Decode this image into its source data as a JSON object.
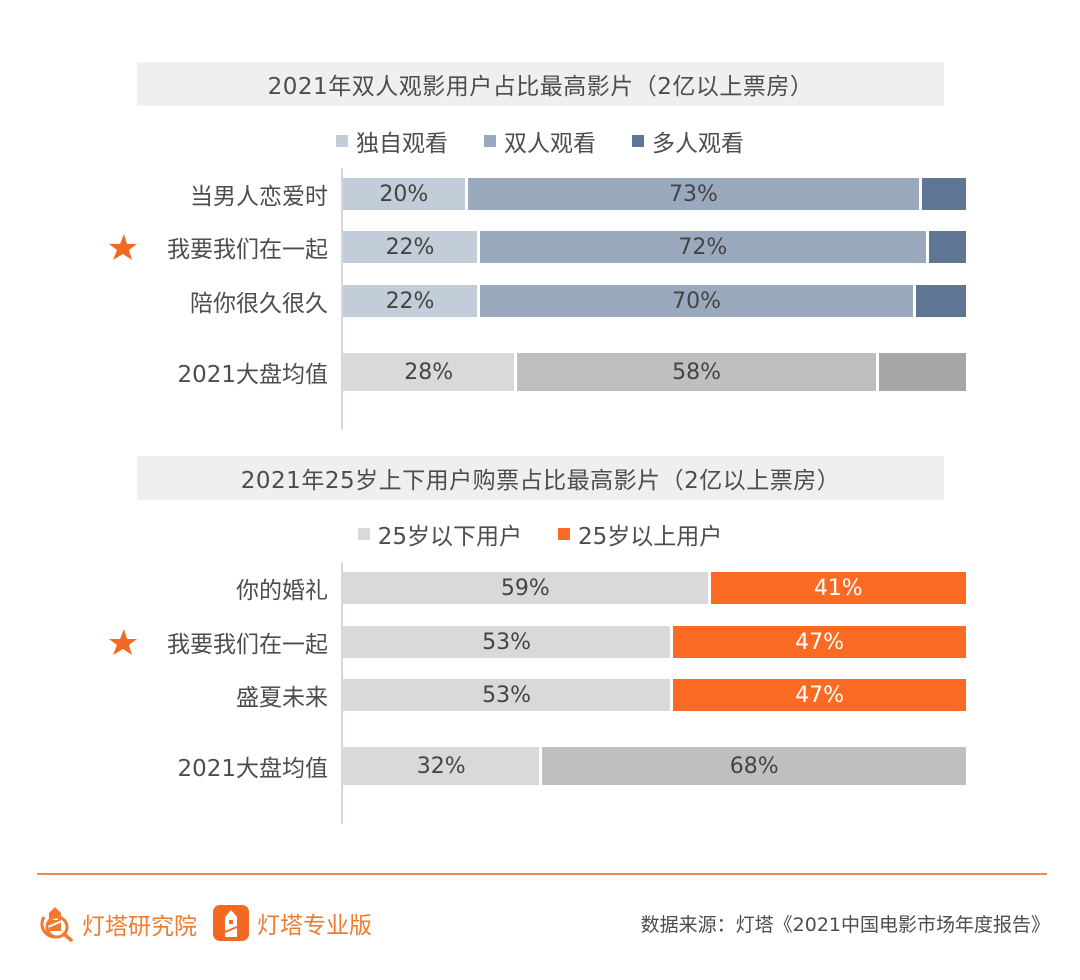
{
  "colors": {
    "accent": "#f26a21",
    "title_bg": "#eeeff1",
    "solo": "#c3ccd9",
    "pair": "#9ba9bf",
    "group": "#5e7594",
    "avg_first": "#d9d9d9",
    "avg_second": "#bfbfbf",
    "avg_third": "#a6a6a6",
    "under25": "#d9d9d9",
    "over25": "#fb6a22"
  },
  "chart_data": [
    {
      "type": "bar",
      "orientation": "horizontal",
      "stacked": true,
      "normalized": true,
      "title": "2021年双人观影用户占比最高影片（2亿以上票房）",
      "legend": [
        "独自观看",
        "双人观看",
        "多人观看"
      ],
      "legend_position": "top",
      "categories": [
        "当男人恋爱时",
        "我要我们在一起",
        "陪你很久很久",
        "2021大盘均值"
      ],
      "highlighted_category": "我要我们在一起",
      "series": [
        {
          "name": "独自观看",
          "values": [
            20,
            22,
            22,
            28
          ],
          "labels": [
            "20%",
            "22%",
            "22%",
            "28%"
          ]
        },
        {
          "name": "双人观看",
          "values": [
            73,
            72,
            70,
            58
          ],
          "labels": [
            "73%",
            "72%",
            "70%",
            "58%"
          ]
        },
        {
          "name": "多人观看",
          "values": [
            7,
            6,
            8,
            14
          ],
          "labels": [
            "",
            "",
            "",
            ""
          ]
        }
      ],
      "xlim": [
        0,
        100
      ],
      "grid": false
    },
    {
      "type": "bar",
      "orientation": "horizontal",
      "stacked": true,
      "normalized": true,
      "title": "2021年25岁上下用户购票占比最高影片（2亿以上票房）",
      "legend": [
        "25岁以下用户",
        "25岁以上用户"
      ],
      "legend_position": "top",
      "categories": [
        "你的婚礼",
        "我要我们在一起",
        "盛夏未来",
        "2021大盘均值"
      ],
      "highlighted_category": "我要我们在一起",
      "series": [
        {
          "name": "25岁以下用户",
          "values": [
            59,
            53,
            53,
            32
          ],
          "labels": [
            "59%",
            "53%",
            "53%",
            "32%"
          ]
        },
        {
          "name": "25岁以上用户",
          "values": [
            41,
            47,
            47,
            68
          ],
          "labels": [
            "41%",
            "47%",
            "47%",
            "68%"
          ]
        }
      ],
      "xlim": [
        0,
        100
      ],
      "grid": false
    }
  ],
  "footer": {
    "brand1": "灯塔研究院",
    "brand2": "灯塔专业版",
    "source": "数据来源：灯塔《2021中国电影市场年度报告》"
  }
}
